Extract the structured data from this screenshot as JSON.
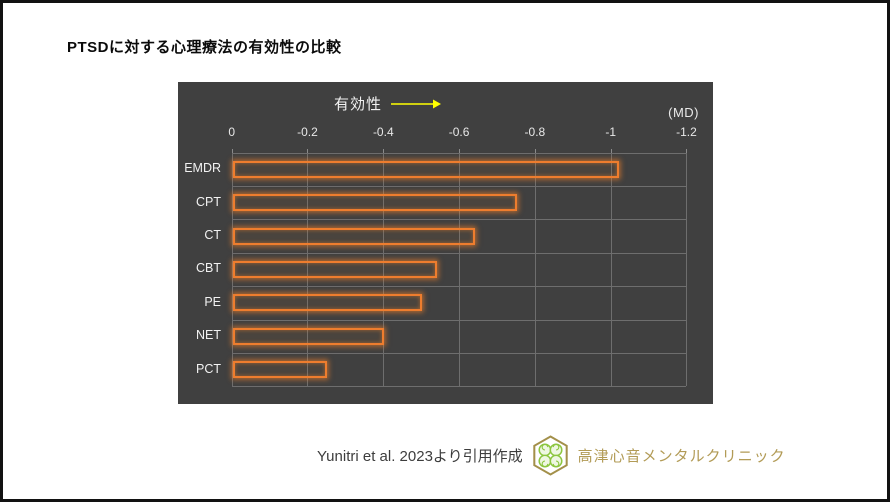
{
  "slide": {
    "title": "PTSDに対する心理療法の有効性の比較",
    "source_text": "Yunitri et al. 2023より引用作成",
    "clinic_name": "高津心音メンタルクリニック"
  },
  "chart_data": {
    "type": "bar",
    "orientation": "horizontal",
    "axis_top_label": "有効性",
    "unit_label": "(MD)",
    "categories": [
      "EMDR",
      "CPT",
      "CT",
      "CBT",
      "PE",
      "NET",
      "PCT"
    ],
    "values": [
      -1.02,
      -0.75,
      -0.64,
      -0.54,
      -0.5,
      -0.4,
      -0.25
    ],
    "xlim": [
      0,
      -1.2
    ],
    "tick_labels": [
      "0",
      "-0.2",
      "-0.4",
      "-0.6",
      "-0.8",
      "-1",
      "-1.2"
    ],
    "grid": true,
    "legend": "none",
    "colors": {
      "panel_bg": "#404040",
      "bar_outline": "#ee7d2e",
      "gridline": "#6e6e6e",
      "axis_text": "#e8e8e8",
      "arrow": "#ffff00",
      "clinic_gold": "#b29b56",
      "logo_green": "#8cc63f",
      "logo_hex_gold": "#a3904a"
    }
  }
}
